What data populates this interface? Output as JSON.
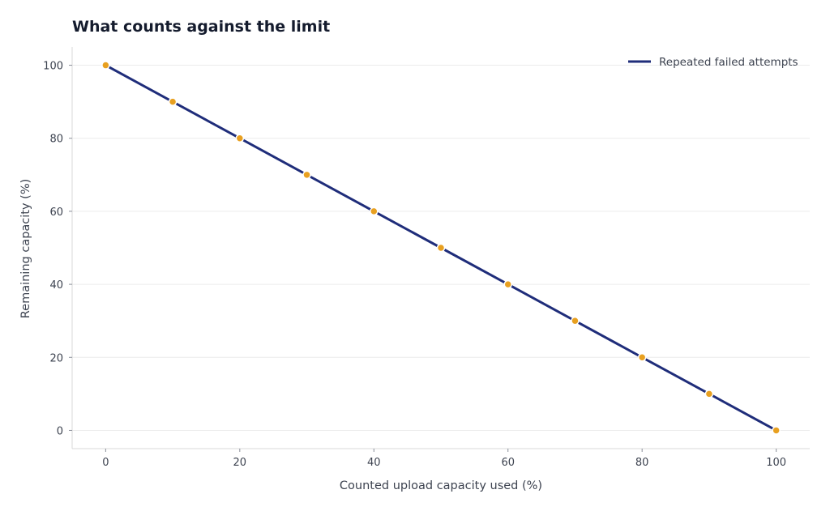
{
  "chart_data": {
    "type": "line",
    "title": "What counts against the limit",
    "xlabel": "Counted upload capacity used (%)",
    "ylabel": "Remaining capacity (%)",
    "xlim": [
      -5,
      105
    ],
    "ylim": [
      -5,
      105
    ],
    "xticks": [
      0,
      20,
      40,
      60,
      80,
      100
    ],
    "yticks": [
      0,
      20,
      40,
      60,
      80,
      100
    ],
    "grid": "horizontal",
    "legend_position": "top-right",
    "series": [
      {
        "name": "Repeated failed attempts",
        "line_color": "#1f2d7a",
        "marker_color": "#e8a020",
        "x": [
          0,
          10,
          20,
          30,
          40,
          50,
          60,
          70,
          80,
          90,
          100
        ],
        "y": [
          100,
          90,
          80,
          70,
          60,
          50,
          40,
          30,
          20,
          10,
          0
        ]
      }
    ]
  }
}
